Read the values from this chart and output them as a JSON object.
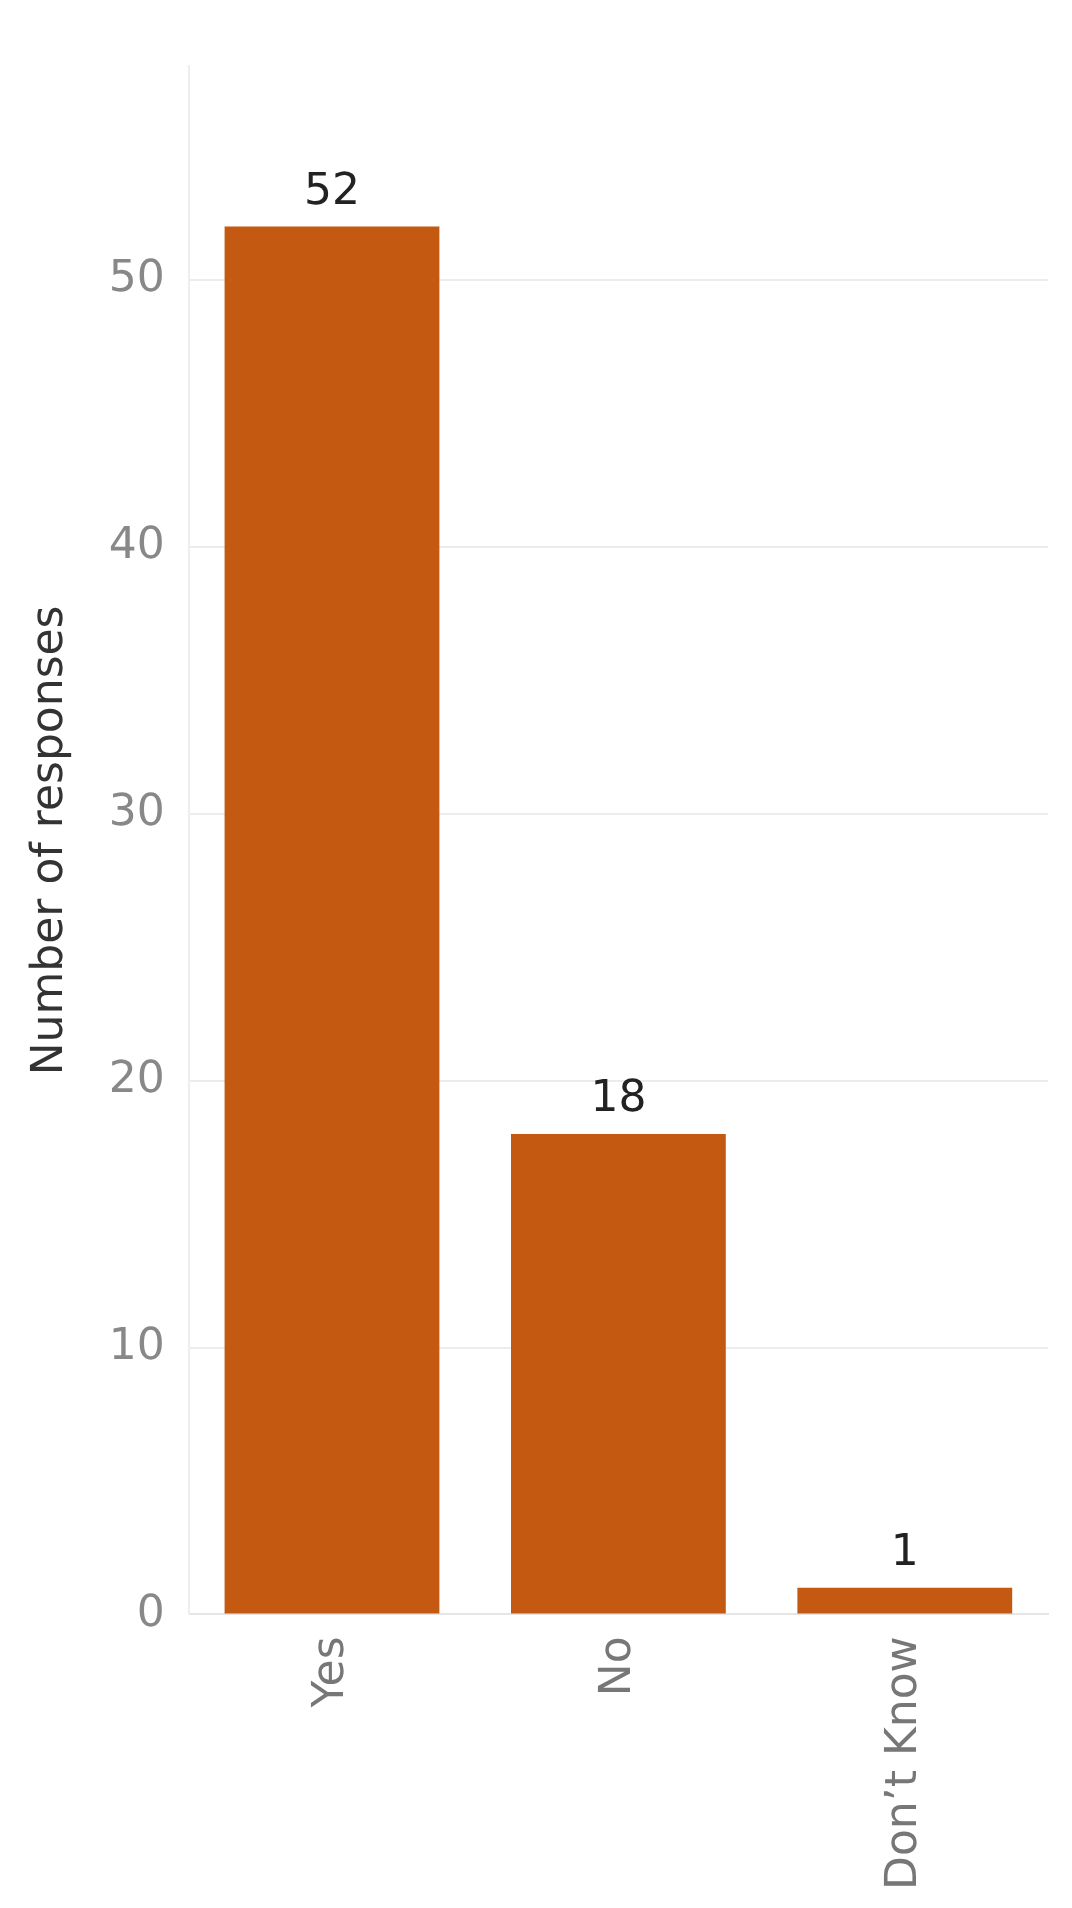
{
  "chart_data": {
    "type": "bar",
    "ylabel": "Number of responses",
    "categories": [
      "Yes",
      "No",
      "Don’t Know"
    ],
    "values": [
      52,
      18,
      1
    ],
    "color": "#c45a12",
    "ylim": [
      0,
      58
    ],
    "yticks": [
      0,
      10,
      20,
      30,
      40,
      50
    ],
    "grid": "y",
    "data_labels": true
  }
}
